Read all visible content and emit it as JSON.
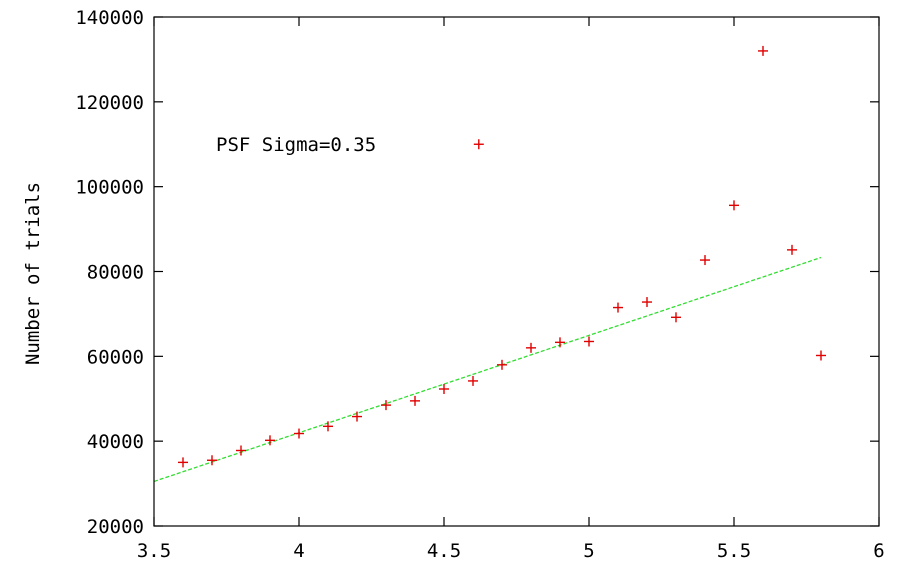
{
  "chart_data": {
    "type": "scatter",
    "title": "",
    "xlabel": "",
    "ylabel": "Number of trials",
    "xlim": [
      3.5,
      6
    ],
    "ylim": [
      20000,
      140000
    ],
    "xticks": [
      3.5,
      4,
      4.5,
      5,
      5.5,
      6
    ],
    "xtick_labels": [
      "3.5",
      "4",
      "4.5",
      "5",
      "5.5",
      "6"
    ],
    "yticks": [
      20000,
      40000,
      60000,
      80000,
      100000,
      120000,
      140000
    ],
    "ytick_labels": [
      "20000",
      "40000",
      "60000",
      "80000",
      "100000",
      "120000",
      "140000"
    ],
    "grid": false,
    "annotation": "PSF Sigma=0.35",
    "series": [
      {
        "marker": "+",
        "color": "#e00000",
        "x": [
          3.6,
          3.7,
          3.8,
          3.9,
          4.0,
          4.1,
          4.2,
          4.3,
          4.4,
          4.5,
          4.6,
          4.62,
          4.7,
          4.8,
          4.9,
          5.0,
          5.1,
          5.2,
          5.3,
          5.4,
          5.5,
          5.6,
          5.7,
          5.8
        ],
        "y": [
          35000,
          35500,
          37800,
          40200,
          41800,
          43500,
          45800,
          48500,
          49500,
          52300,
          54200,
          110000,
          58000,
          62000,
          63300,
          63500,
          71500,
          72800,
          69200,
          82700,
          95600,
          132000,
          85100,
          60200
        ]
      }
    ],
    "fit_line": {
      "color": "#33dd33",
      "style": "dashed",
      "x": [
        3.5,
        5.8
      ],
      "y": [
        30500,
        83300
      ]
    }
  }
}
